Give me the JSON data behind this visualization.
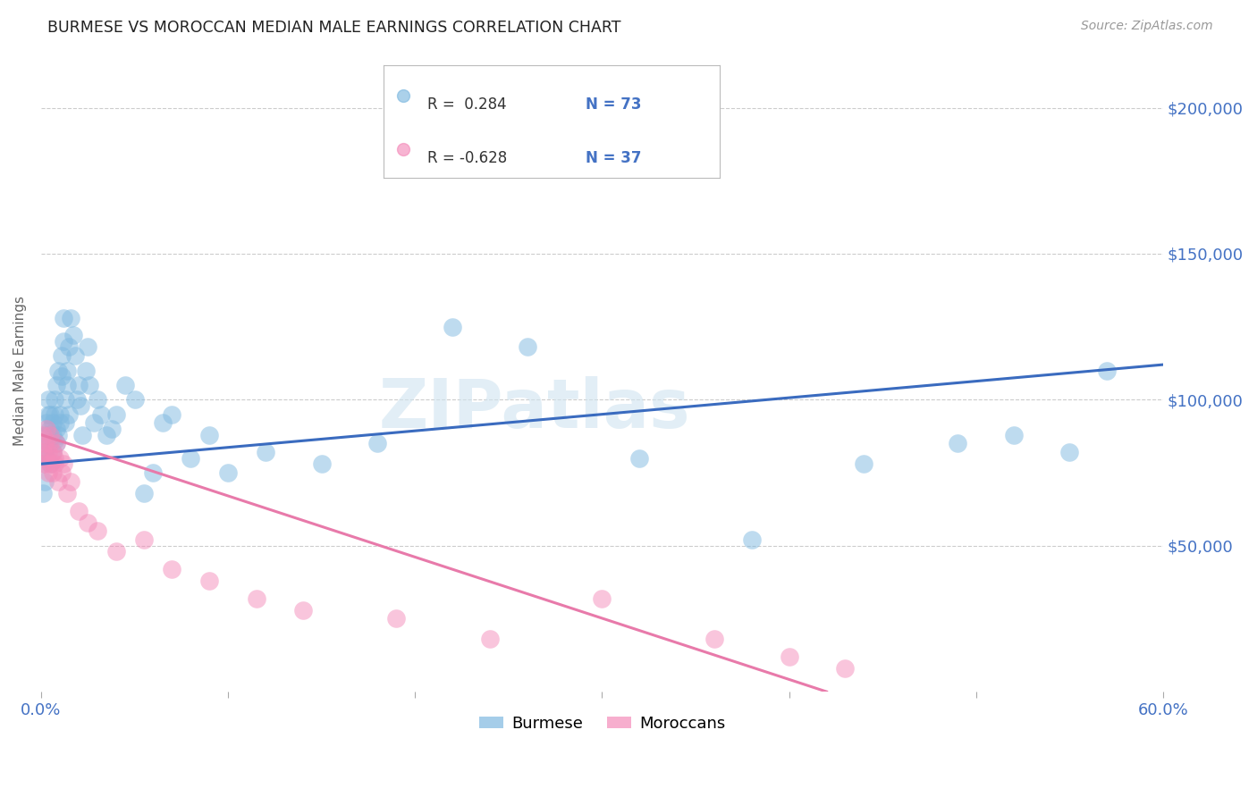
{
  "title": "BURMESE VS MOROCCAN MEDIAN MALE EARNINGS CORRELATION CHART",
  "source": "Source: ZipAtlas.com",
  "ylabel": "Median Male Earnings",
  "watermark": "ZIPatlas",
  "xlim": [
    0.0,
    0.6
  ],
  "ylim": [
    0,
    220000
  ],
  "ytick_values": [
    50000,
    100000,
    150000,
    200000
  ],
  "ytick_labels": [
    "$50,000",
    "$100,000",
    "$150,000",
    "$200,000"
  ],
  "R_burmese": 0.284,
  "N_burmese": 73,
  "R_moroccan": -0.628,
  "N_moroccan": 37,
  "color_burmese": "#7fb9e0",
  "color_moroccan": "#f48cba",
  "color_title": "#222222",
  "color_axis": "#4472c4",
  "color_yticks": "#4472c4",
  "color_xticks": "#4472c4",
  "legend_label_burmese": "Burmese",
  "legend_label_moroccan": "Moroccans",
  "burmese_x": [
    0.001,
    0.001,
    0.002,
    0.002,
    0.003,
    0.003,
    0.003,
    0.004,
    0.004,
    0.004,
    0.005,
    0.005,
    0.005,
    0.006,
    0.006,
    0.006,
    0.007,
    0.007,
    0.007,
    0.008,
    0.008,
    0.008,
    0.009,
    0.009,
    0.01,
    0.01,
    0.011,
    0.011,
    0.012,
    0.012,
    0.013,
    0.013,
    0.014,
    0.014,
    0.015,
    0.015,
    0.016,
    0.017,
    0.018,
    0.019,
    0.02,
    0.021,
    0.022,
    0.024,
    0.025,
    0.026,
    0.028,
    0.03,
    0.032,
    0.035,
    0.038,
    0.04,
    0.045,
    0.05,
    0.055,
    0.06,
    0.065,
    0.07,
    0.08,
    0.09,
    0.1,
    0.12,
    0.15,
    0.18,
    0.22,
    0.26,
    0.32,
    0.38,
    0.44,
    0.49,
    0.52,
    0.55,
    0.57
  ],
  "burmese_y": [
    78000,
    68000,
    82000,
    72000,
    88000,
    80000,
    92000,
    95000,
    85000,
    100000,
    90000,
    78000,
    95000,
    88000,
    82000,
    92000,
    86000,
    95000,
    100000,
    90000,
    85000,
    105000,
    110000,
    88000,
    95000,
    92000,
    115000,
    108000,
    128000,
    120000,
    100000,
    92000,
    105000,
    110000,
    118000,
    95000,
    128000,
    122000,
    115000,
    100000,
    105000,
    98000,
    88000,
    110000,
    118000,
    105000,
    92000,
    100000,
    95000,
    88000,
    90000,
    95000,
    105000,
    100000,
    68000,
    75000,
    92000,
    95000,
    80000,
    88000,
    75000,
    82000,
    78000,
    85000,
    125000,
    118000,
    80000,
    52000,
    78000,
    85000,
    88000,
    82000,
    110000
  ],
  "moroccan_x": [
    0.001,
    0.001,
    0.002,
    0.002,
    0.003,
    0.003,
    0.004,
    0.004,
    0.005,
    0.005,
    0.005,
    0.006,
    0.006,
    0.007,
    0.007,
    0.008,
    0.009,
    0.01,
    0.011,
    0.012,
    0.014,
    0.016,
    0.02,
    0.025,
    0.03,
    0.04,
    0.055,
    0.07,
    0.09,
    0.115,
    0.14,
    0.19,
    0.24,
    0.3,
    0.36,
    0.4,
    0.43
  ],
  "moroccan_y": [
    88000,
    82000,
    78000,
    85000,
    80000,
    90000,
    75000,
    82000,
    88000,
    78000,
    85000,
    82000,
    75000,
    80000,
    78000,
    85000,
    72000,
    80000,
    75000,
    78000,
    68000,
    72000,
    62000,
    58000,
    55000,
    48000,
    52000,
    42000,
    38000,
    32000,
    28000,
    25000,
    18000,
    32000,
    18000,
    12000,
    8000
  ],
  "burmese_line_x": [
    0.0,
    0.6
  ],
  "burmese_line_y": [
    78000,
    112000
  ],
  "moroccan_line_x": [
    0.0,
    0.42
  ],
  "moroccan_line_y": [
    88000,
    0
  ],
  "grid_color": "#cccccc",
  "background_color": "#ffffff"
}
